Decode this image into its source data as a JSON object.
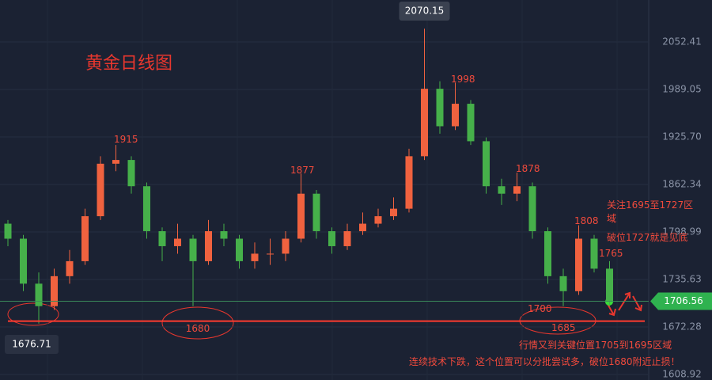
{
  "chart_data": {
    "type": "candlestick",
    "title": "黄金日线图",
    "open": [
      1810,
      1790,
      1730,
      1700,
      1740,
      1760,
      1820,
      1890,
      1895,
      1860,
      1800,
      1780,
      1790,
      1760,
      1800,
      1790,
      1760,
      1770,
      1770,
      1790,
      1850,
      1800,
      1780,
      1800,
      1810,
      1820,
      1830,
      1900,
      1990,
      1940,
      1970,
      1920,
      1860,
      1850,
      1860,
      1800,
      1740,
      1720,
      1790,
      1750
    ],
    "high": [
      1815,
      1795,
      1745,
      1750,
      1775,
      1830,
      1900,
      1915,
      1900,
      1865,
      1805,
      1810,
      1795,
      1815,
      1810,
      1795,
      1785,
      1790,
      1800,
      1877,
      1855,
      1805,
      1810,
      1825,
      1830,
      1845,
      1910,
      2070.15,
      2000,
      1998,
      1975,
      1925,
      1870,
      1878,
      1865,
      1805,
      1750,
      1808,
      1795,
      1760
    ],
    "low": [
      1780,
      1720,
      1676.71,
      1695,
      1730,
      1755,
      1815,
      1880,
      1850,
      1790,
      1760,
      1770,
      1700,
      1755,
      1780,
      1750,
      1750,
      1755,
      1760,
      1785,
      1790,
      1770,
      1775,
      1795,
      1805,
      1815,
      1825,
      1895,
      1930,
      1935,
      1915,
      1850,
      1835,
      1840,
      1790,
      1730,
      1700,
      1715,
      1745,
      1700
    ],
    "close": [
      1790,
      1730,
      1700,
      1740,
      1760,
      1820,
      1890,
      1895,
      1860,
      1800,
      1780,
      1790,
      1760,
      1800,
      1790,
      1760,
      1770,
      1770,
      1790,
      1850,
      1800,
      1780,
      1800,
      1810,
      1820,
      1830,
      1900,
      1990,
      1940,
      1970,
      1920,
      1860,
      1850,
      1860,
      1800,
      1740,
      1720,
      1790,
      1750,
      1706.56
    ],
    "up_color": "#f0623f",
    "down_color": "#46b04a",
    "ylim": [
      1601.5,
      2108.4
    ],
    "yticks": [
      1608.92,
      1672.28,
      1735.63,
      1798.99,
      1862.34,
      {
        "value": 1925.7,
        "label": "1925.70"
      },
      1989.05,
      2052.41
    ],
    "grid": true,
    "support_level": 1680,
    "last_price": 1706.56,
    "annotations": [
      "1915",
      "1877",
      "1998",
      "1878",
      "1808",
      "1765",
      "1700",
      "1685",
      "关注1695至1727区域",
      "破位1727就是见底",
      "行情又到关键位置1705到1695区域",
      "连续技术下跌，这个位置可以分批尝试多，破位1680附近止损！"
    ]
  }
}
